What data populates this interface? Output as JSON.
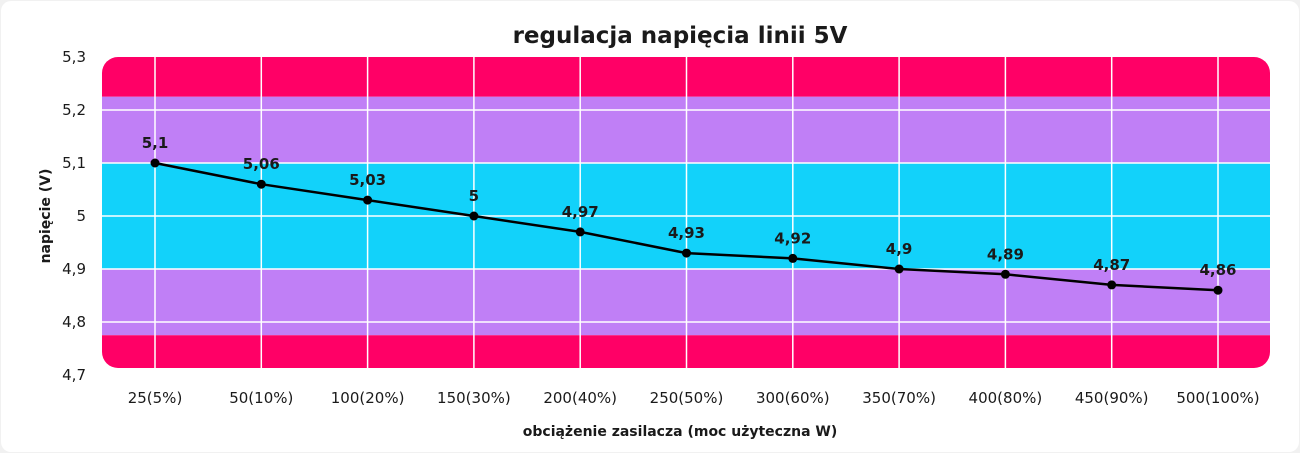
{
  "chart_data": {
    "type": "line",
    "title": "regulacja napięcia linii 5V",
    "xlabel": "obciążenie zasilacza (moc użyteczna W)",
    "ylabel": "napięcie (V)",
    "categories": [
      "25(5%)",
      "50(10%)",
      "100(20%)",
      "150(30%)",
      "200(40%)",
      "250(50%)",
      "300(60%)",
      "350(70%)",
      "400(80%)",
      "450(90%)",
      "500(100%)"
    ],
    "values": [
      5.1,
      5.06,
      5.03,
      5.0,
      4.97,
      4.93,
      4.92,
      4.9,
      4.89,
      4.87,
      4.86
    ],
    "value_labels": [
      "5,1",
      "5,06",
      "5,03",
      "5",
      "4,97",
      "4,93",
      "4,92",
      "4,9",
      "4,89",
      "4,87",
      "4,86"
    ],
    "yticks": [
      5.3,
      5.2,
      5.1,
      5.0,
      4.9,
      4.8,
      4.7
    ],
    "ytick_labels": [
      "5,3",
      "5,2",
      "5,1",
      "5",
      "4,9",
      "4,8",
      "4,7"
    ],
    "ylim": [
      4.7,
      5.3
    ],
    "grid": true,
    "legend": "none",
    "bands": [
      {
        "from": 5.225,
        "to": 5.3,
        "color": "#ff0066"
      },
      {
        "from": 5.1,
        "to": 5.225,
        "color": "#c07ff6"
      },
      {
        "from": 4.9,
        "to": 5.1,
        "color": "#12d2fa"
      },
      {
        "from": 4.775,
        "to": 4.9,
        "color": "#c07ff6"
      },
      {
        "from": 4.7,
        "to": 4.775,
        "color": "#ff0066"
      }
    ],
    "line_color": "#000000",
    "grid_color": "#ffffff"
  }
}
